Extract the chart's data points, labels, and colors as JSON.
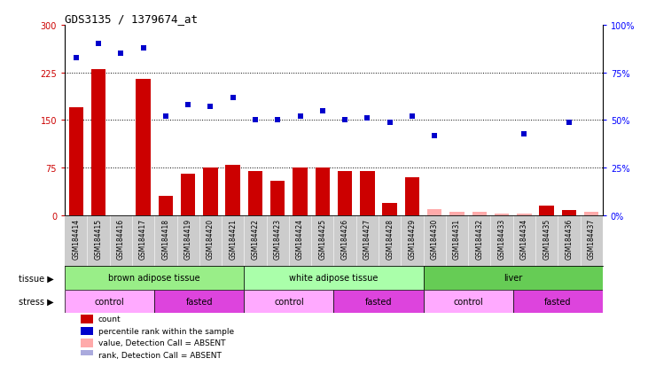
{
  "title": "GDS3135 / 1379674_at",
  "samples": [
    "GSM184414",
    "GSM184415",
    "GSM184416",
    "GSM184417",
    "GSM184418",
    "GSM184419",
    "GSM184420",
    "GSM184421",
    "GSM184422",
    "GSM184423",
    "GSM184424",
    "GSM184425",
    "GSM184426",
    "GSM184427",
    "GSM184428",
    "GSM184429",
    "GSM184430",
    "GSM184431",
    "GSM184432",
    "GSM184433",
    "GSM184434",
    "GSM184435",
    "GSM184436",
    "GSM184437"
  ],
  "count_values": [
    170,
    230,
    0,
    215,
    30,
    65,
    75,
    80,
    70,
    55,
    75,
    75,
    70,
    70,
    20,
    60,
    10,
    5,
    5,
    3,
    3,
    15,
    8,
    5
  ],
  "count_absent": [
    false,
    false,
    false,
    false,
    false,
    false,
    false,
    false,
    false,
    false,
    false,
    false,
    false,
    false,
    false,
    false,
    true,
    true,
    true,
    true,
    true,
    false,
    false,
    true
  ],
  "rank_values": [
    83,
    90,
    85,
    88,
    52,
    58,
    57,
    62,
    50,
    50,
    52,
    55,
    50,
    51,
    49,
    52,
    42,
    null,
    null,
    null,
    43,
    null,
    49,
    null
  ],
  "rank_absent": [
    false,
    false,
    false,
    false,
    false,
    false,
    false,
    false,
    false,
    false,
    false,
    false,
    false,
    false,
    false,
    false,
    false,
    true,
    true,
    true,
    false,
    true,
    false,
    true
  ],
  "ylim_left": [
    0,
    300
  ],
  "ylim_right": [
    0,
    100
  ],
  "yticks_left": [
    0,
    75,
    150,
    225,
    300
  ],
  "yticks_right": [
    0,
    25,
    50,
    75,
    100
  ],
  "ytick_labels_left": [
    "0",
    "75",
    "150",
    "225",
    "300"
  ],
  "ytick_labels_right": [
    "0%",
    "25%",
    "50%",
    "75%",
    "100%"
  ],
  "hlines": [
    75,
    150,
    225
  ],
  "bar_color_present": "#cc0000",
  "bar_color_absent": "#ffaaaa",
  "rank_color_present": "#0000cc",
  "rank_color_absent": "#aaaadd",
  "tissue_groups": [
    {
      "label": "brown adipose tissue",
      "start": 0,
      "end": 8,
      "color": "#99ee88"
    },
    {
      "label": "white adipose tissue",
      "start": 8,
      "end": 16,
      "color": "#aaffaa"
    },
    {
      "label": "liver",
      "start": 16,
      "end": 24,
      "color": "#66cc55"
    }
  ],
  "stress_groups": [
    {
      "label": "control",
      "start": 0,
      "end": 4,
      "color": "#ffaaff"
    },
    {
      "label": "fasted",
      "start": 4,
      "end": 8,
      "color": "#dd44dd"
    },
    {
      "label": "control",
      "start": 8,
      "end": 12,
      "color": "#ffaaff"
    },
    {
      "label": "fasted",
      "start": 12,
      "end": 16,
      "color": "#dd44dd"
    },
    {
      "label": "control",
      "start": 16,
      "end": 20,
      "color": "#ffaaff"
    },
    {
      "label": "fasted",
      "start": 20,
      "end": 24,
      "color": "#dd44dd"
    }
  ],
  "legend_items": [
    {
      "label": "count",
      "color": "#cc0000"
    },
    {
      "label": "percentile rank within the sample",
      "color": "#0000cc"
    },
    {
      "label": "value, Detection Call = ABSENT",
      "color": "#ffaaaa"
    },
    {
      "label": "rank, Detection Call = ABSENT",
      "color": "#aaaadd"
    }
  ],
  "tissue_label": "tissue",
  "stress_label": "stress",
  "xticklabel_bg": "#cccccc",
  "plot_bg_color": "#ffffff"
}
